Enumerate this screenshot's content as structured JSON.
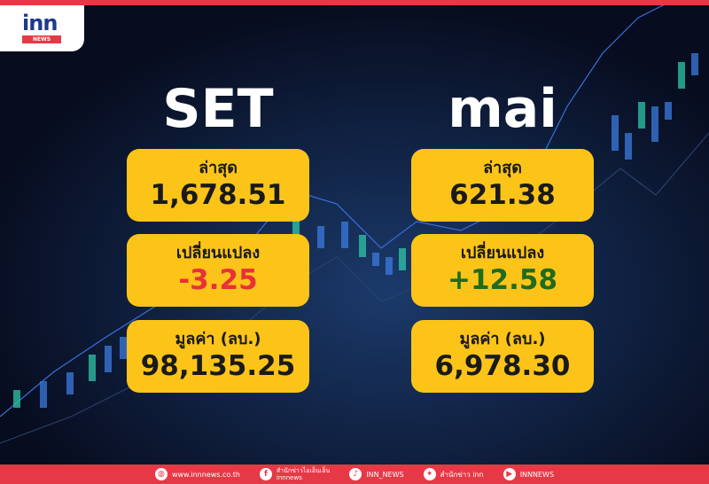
{
  "logo": {
    "text": "inn",
    "sub": "NEWS"
  },
  "set": {
    "title": "SET",
    "latest_label": "ล่าสุด",
    "latest": "1,678.51",
    "change_label": "เปลี่ยนแปลง",
    "change": "-3.25",
    "value_label": "มูลค่า (ลบ.)",
    "value": "98,135.25"
  },
  "mai": {
    "title": "mai",
    "latest_label": "ล่าสุด",
    "latest": "621.38",
    "change_label": "เปลี่ยนแปลง",
    "change": "+12.58",
    "value_label": "มูลค่า (ลบ.)",
    "value": "6,978.30"
  },
  "colors": {
    "card": "#fcc419",
    "negative": "#e8303a",
    "positive": "#1f6b1f",
    "brand": "#e63946"
  },
  "footer": {
    "website": "www.innnews.co.th",
    "facebook_line1": "สำนักข่าวไอเอ็นเอ็น",
    "facebook_line2": "innnews",
    "tiktok": "INN_NEWS",
    "twitter": "สำนักข่าว inn",
    "youtube": "INNNEWS"
  }
}
